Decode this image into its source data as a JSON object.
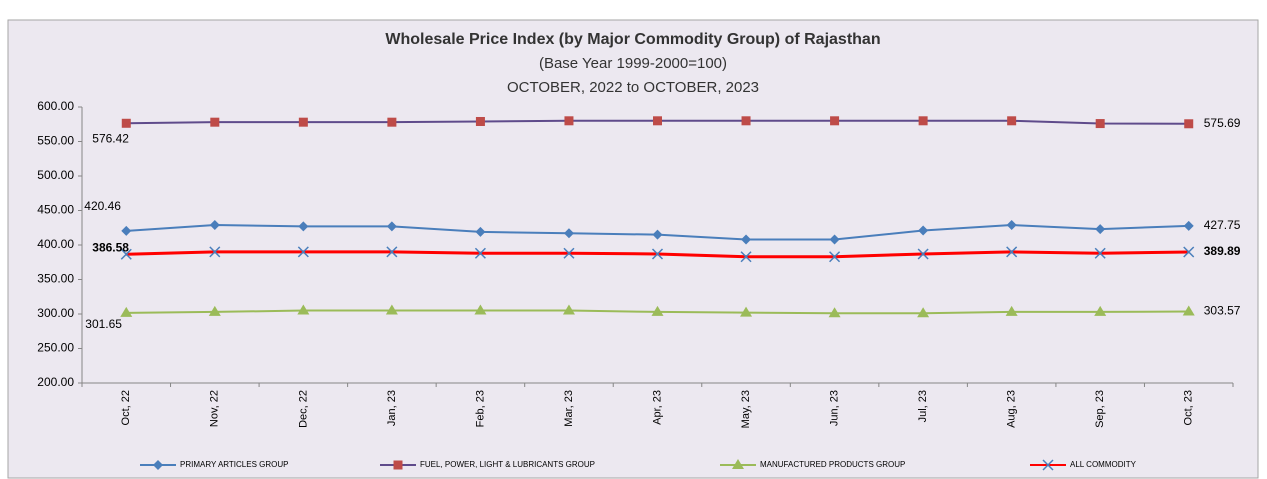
{
  "chart_data": {
    "type": "line",
    "title": "Wholesale Price Index (by Major Commodity Group) of Rajasthan",
    "subtitle": "(Base Year 1999-2000=100)",
    "period": "OCTOBER, 2022 to OCTOBER, 2023",
    "categories": [
      "Oct, 22",
      "Nov, 22",
      "Dec, 22",
      "Jan, 23",
      "Feb, 23",
      "Mar, 23",
      "Apr, 23",
      "May, 23",
      "Jun, 23",
      "Jul, 23",
      "Aug, 23",
      "Sep, 23",
      "Oct, 23"
    ],
    "series": [
      {
        "name": "PRIMARY ARTICLES GROUP",
        "color": "#4a7ebb",
        "marker": "diamond",
        "marker_color": "#4a7ebb",
        "values": [
          420.46,
          429,
          427,
          427,
          419,
          417,
          415,
          408,
          408,
          421,
          429,
          423,
          427.75
        ]
      },
      {
        "name": "FUEL, POWER, LIGHT & LUBRICANTS GROUP",
        "color": "#5f4b8b",
        "marker": "square",
        "marker_color": "#be4b48",
        "values": [
          576.42,
          578,
          578,
          578,
          579,
          580,
          580,
          580,
          580,
          580,
          580,
          576,
          575.69
        ]
      },
      {
        "name": "MANUFACTURED PRODUCTS GROUP",
        "color": "#9bbb59",
        "marker": "triangle",
        "marker_color": "#9bbb59",
        "values": [
          301.65,
          303,
          305,
          305,
          305,
          305,
          303,
          302,
          301,
          301,
          303,
          303,
          303.57
        ]
      },
      {
        "name": "ALL COMMODITY",
        "color": "#ff0000",
        "marker": "x",
        "marker_color": "#4a7ebb",
        "values": [
          386.58,
          390,
          390,
          390,
          388,
          388,
          387,
          383,
          383,
          387,
          390,
          388,
          389.89
        ]
      }
    ],
    "ylim": [
      200,
      600
    ],
    "yticks": [
      {
        "value": 200,
        "label": "200.00"
      },
      {
        "value": 250,
        "label": "250.00"
      },
      {
        "value": 300,
        "label": "300.00"
      },
      {
        "value": 350,
        "label": "350.00"
      },
      {
        "value": 400,
        "label": "400.00"
      },
      {
        "value": 450,
        "label": "450.00"
      },
      {
        "value": 500,
        "label": "500.00"
      },
      {
        "value": 550,
        "label": "550.00"
      },
      {
        "value": 600,
        "label": "600.00"
      }
    ],
    "grid": false,
    "legend": "bottom"
  }
}
